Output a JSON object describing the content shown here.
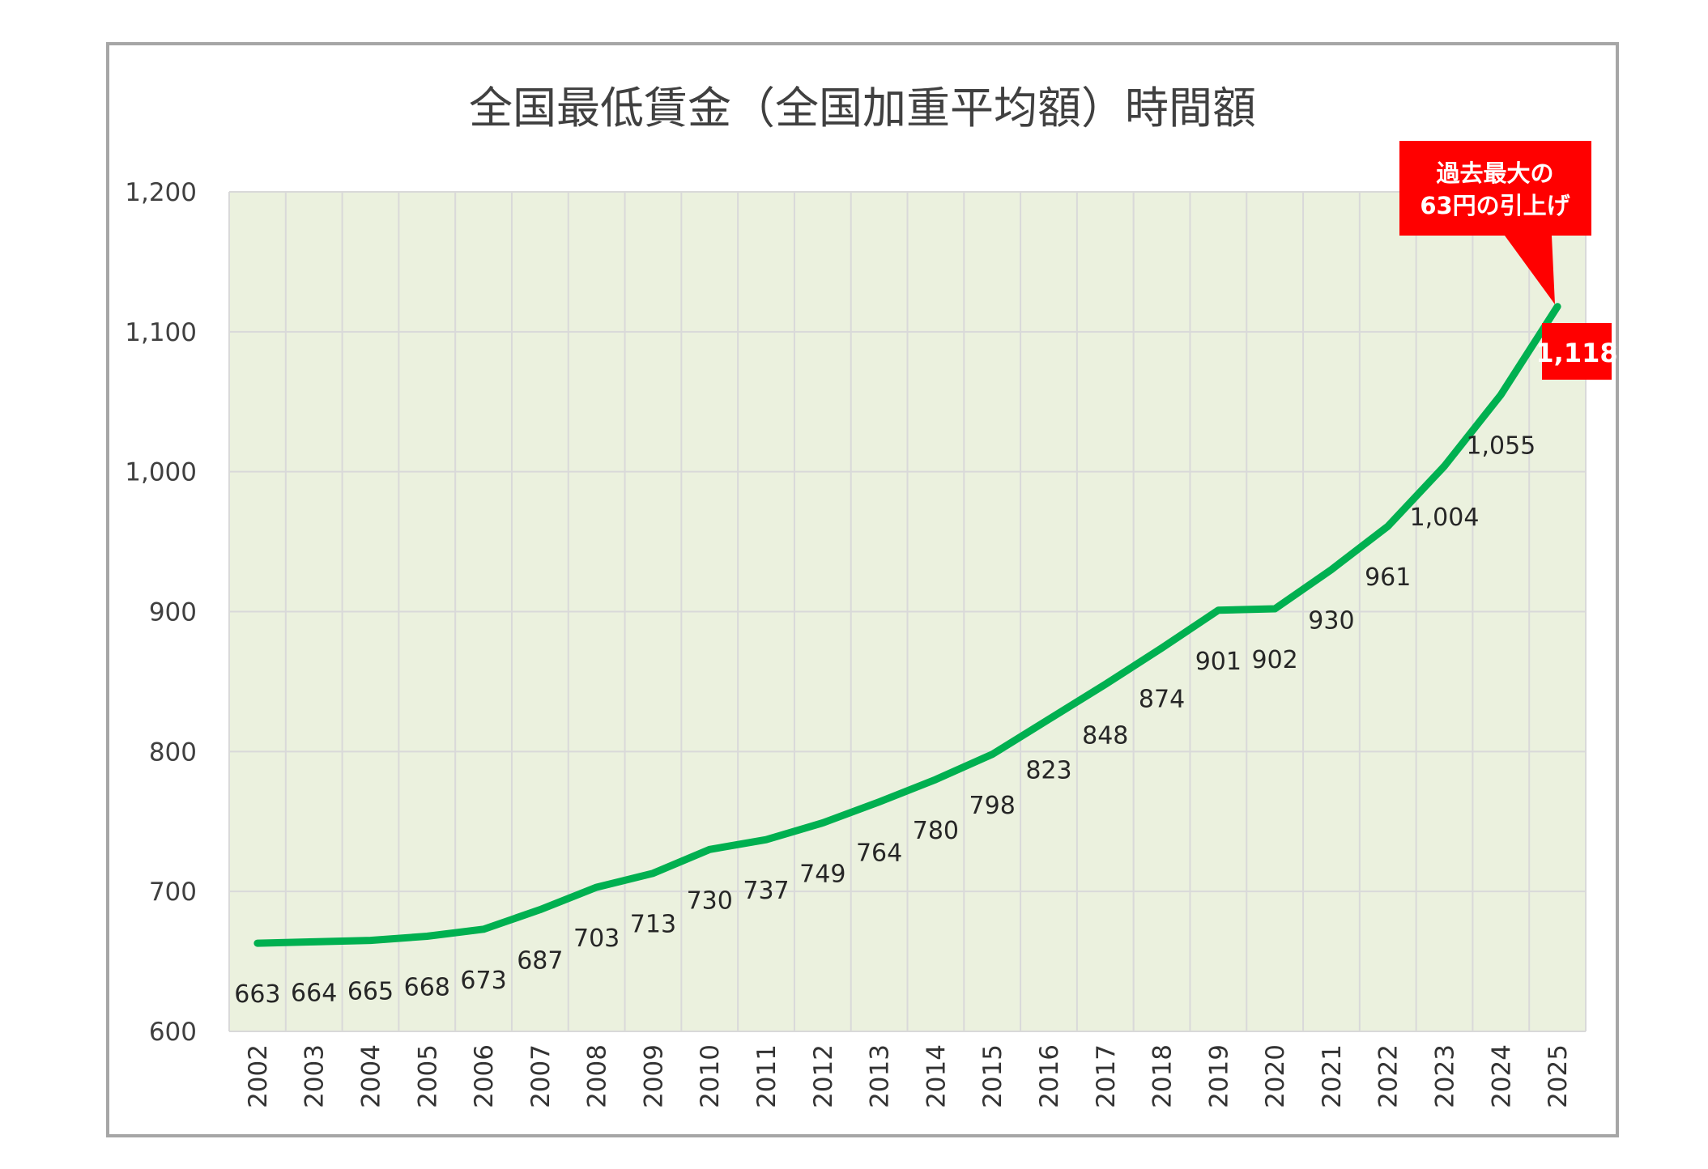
{
  "chart_data": {
    "type": "line",
    "title": "全国最低賃金（全国加重平均額）時間額",
    "xlabel": "",
    "ylabel": "",
    "categories": [
      "2002",
      "2003",
      "2004",
      "2005",
      "2006",
      "2007",
      "2008",
      "2009",
      "2010",
      "2011",
      "2012",
      "2013",
      "2014",
      "2015",
      "2016",
      "2017",
      "2018",
      "2019",
      "2020",
      "2021",
      "2022",
      "2023",
      "2024",
      "2025"
    ],
    "series": [
      {
        "name": "全国加重平均額",
        "values": [
          663,
          664,
          665,
          668,
          673,
          687,
          703,
          713,
          730,
          737,
          749,
          764,
          780,
          798,
          823,
          848,
          874,
          901,
          902,
          930,
          961,
          1004,
          1055,
          1118
        ],
        "color": "#00b050"
      }
    ],
    "data_labels": [
      "663",
      "664",
      "665",
      "668",
      "673",
      "687",
      "703",
      "713",
      "730",
      "737",
      "749",
      "764",
      "780",
      "798",
      "823",
      "848",
      "874",
      "901",
      "902",
      "930",
      "961",
      "1,004",
      "1,055",
      "1,118"
    ],
    "ylim": [
      600,
      1200
    ],
    "yticks": [
      600,
      700,
      800,
      900,
      1000,
      1100,
      1200
    ],
    "ytick_labels": [
      "600",
      "700",
      "800",
      "900",
      "1,000",
      "1,100",
      "1,200"
    ],
    "grid": true,
    "legend": "none",
    "plot_background": "#ebf1de",
    "annotation": {
      "line1": "過去最大の",
      "line2": "63円の引上げ",
      "color": "#ff0000",
      "target": "2025"
    }
  }
}
